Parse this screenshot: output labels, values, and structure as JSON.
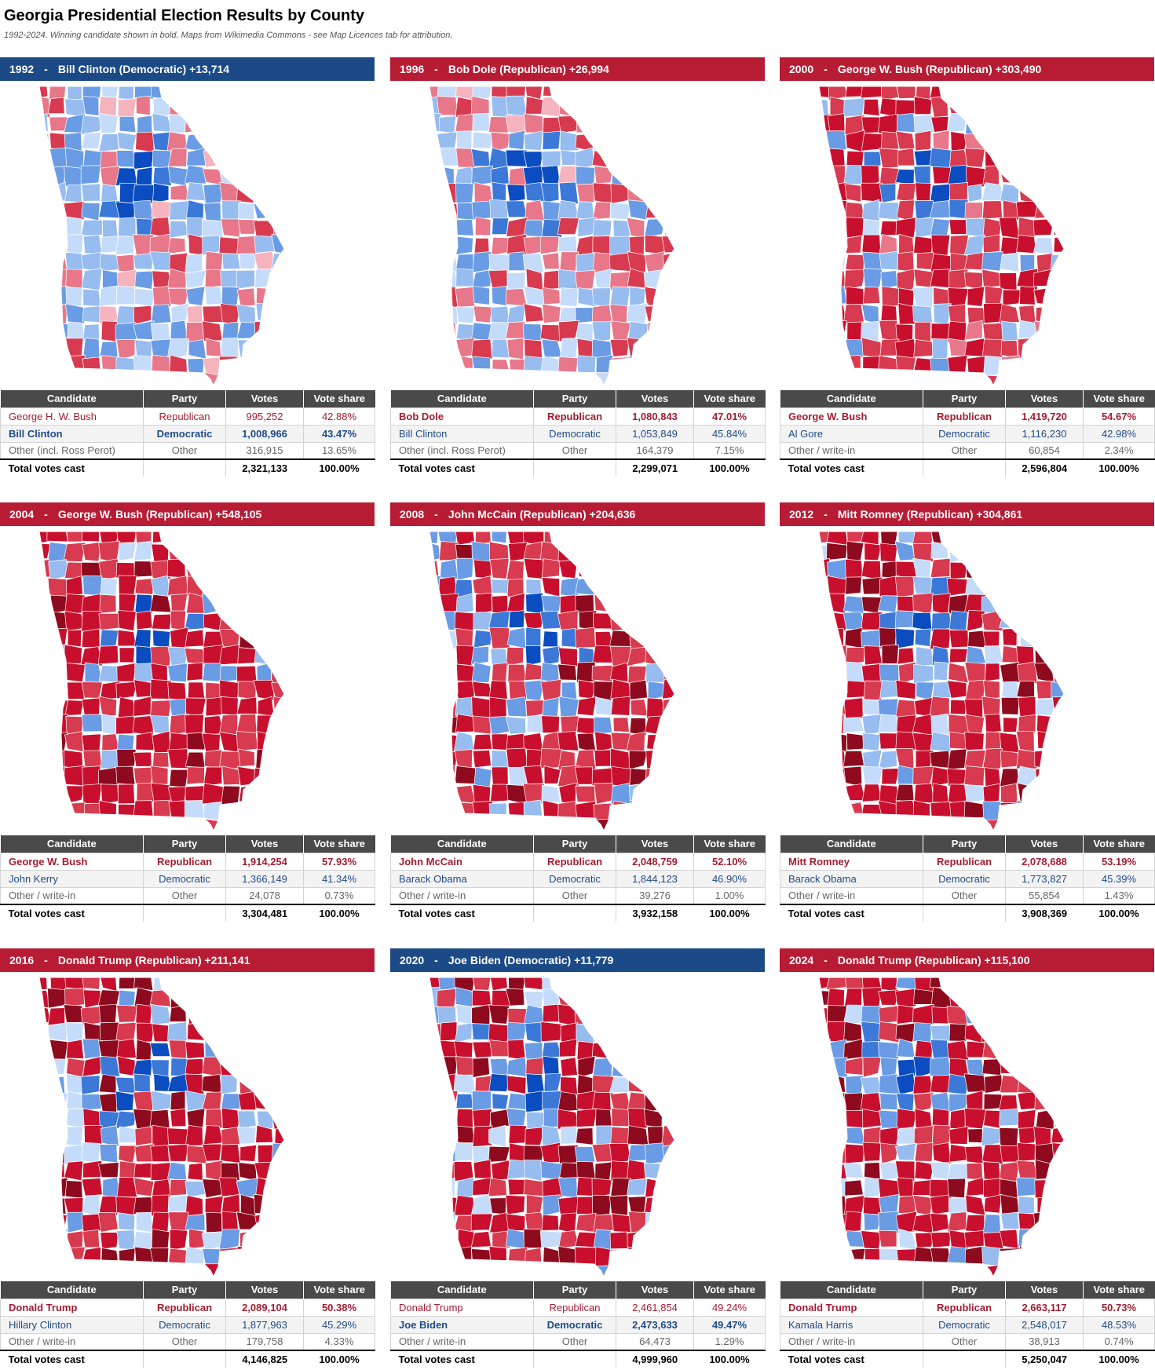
{
  "page": {
    "title": "Georgia Presidential Election Results by County",
    "subtitle": "1992-2024. Winning candidate shown in bold. Maps from Wikimedia Commons - see Map Licences tab for attribution."
  },
  "table_headers": {
    "candidate": "Candidate",
    "party": "Party",
    "votes": "Votes",
    "share": "Vote share"
  },
  "colors": {
    "rep_banner": "#b71c34",
    "dem_banner": "#1c4a86",
    "rep_shades": [
      "#f5b3bd",
      "#e8778a",
      "#d83a4f",
      "#c8102e",
      "#8e0a1e"
    ],
    "dem_shades": [
      "#c4dcfa",
      "#96bcf0",
      "#6a9be5",
      "#3b78d8",
      "#0b4cc0"
    ]
  },
  "panels": [
    {
      "year": "1992",
      "winner_party": "dem",
      "dem_level": 0.55,
      "rep_level": 0.25,
      "banner": {
        "year": "1992",
        "sep": "-",
        "text": "Bill Clinton (Democratic) +13,714"
      },
      "rows": [
        {
          "candidate": "George H. W. Bush",
          "party": "Republican",
          "votes": "995,252",
          "share": "42.88%",
          "kind": "rep",
          "win": false
        },
        {
          "candidate": "Bill Clinton",
          "party": "Democratic",
          "votes": "1,008,966",
          "share": "43.47%",
          "kind": "dem",
          "win": true
        },
        {
          "candidate": "Other (incl. Ross Perot)",
          "party": "Other",
          "votes": "316,915",
          "share": "13.65%",
          "kind": "oth",
          "win": false
        }
      ],
      "total": {
        "label": "Total votes cast",
        "votes": "2,321,133",
        "share": "100.00%"
      }
    },
    {
      "year": "1996",
      "winner_party": "rep",
      "dem_level": 0.5,
      "rep_level": 0.3,
      "banner": {
        "year": "1996",
        "sep": "-",
        "text": "Bob Dole (Republican) +26,994"
      },
      "rows": [
        {
          "candidate": "Bob Dole",
          "party": "Republican",
          "votes": "1,080,843",
          "share": "47.01%",
          "kind": "rep",
          "win": true
        },
        {
          "candidate": "Bill Clinton",
          "party": "Democratic",
          "votes": "1,053,849",
          "share": "45.84%",
          "kind": "dem",
          "win": false
        },
        {
          "candidate": "Other (incl. Ross Perot)",
          "party": "Other",
          "votes": "164,379",
          "share": "7.15%",
          "kind": "oth",
          "win": false
        }
      ],
      "total": {
        "label": "Total votes cast",
        "votes": "2,299,071",
        "share": "100.00%"
      }
    },
    {
      "year": "2000",
      "winner_party": "rep",
      "dem_level": 0.22,
      "rep_level": 0.6,
      "banner": {
        "year": "2000",
        "sep": "-",
        "text": "George W. Bush (Republican) +303,490"
      },
      "rows": [
        {
          "candidate": "George W. Bush",
          "party": "Republican",
          "votes": "1,419,720",
          "share": "54.67%",
          "kind": "rep",
          "win": true
        },
        {
          "candidate": "Al Gore",
          "party": "Democratic",
          "votes": "1,116,230",
          "share": "42.98%",
          "kind": "dem",
          "win": false
        },
        {
          "candidate": "Other / write-in",
          "party": "Other",
          "votes": "60,854",
          "share": "2.34%",
          "kind": "oth",
          "win": false
        }
      ],
      "total": {
        "label": "Total votes cast",
        "votes": "2,596,804",
        "share": "100.00%"
      }
    },
    {
      "year": "2004",
      "winner_party": "rep",
      "dem_level": 0.14,
      "rep_level": 0.75,
      "banner": {
        "year": "2004",
        "sep": "-",
        "text": "George W. Bush (Republican) +548,105"
      },
      "rows": [
        {
          "candidate": "George W. Bush",
          "party": "Republican",
          "votes": "1,914,254",
          "share": "57.93%",
          "kind": "rep",
          "win": true
        },
        {
          "candidate": "John Kerry",
          "party": "Democratic",
          "votes": "1,366,149",
          "share": "41.34%",
          "kind": "dem",
          "win": false
        },
        {
          "candidate": "Other / write-in",
          "party": "Other",
          "votes": "24,078",
          "share": "0.73%",
          "kind": "oth",
          "win": false
        }
      ],
      "total": {
        "label": "Total votes cast",
        "votes": "3,304,481",
        "share": "100.00%"
      }
    },
    {
      "year": "2008",
      "winner_party": "rep",
      "dem_level": 0.2,
      "rep_level": 0.75,
      "banner": {
        "year": "2008",
        "sep": "-",
        "text": "John McCain (Republican) +204,636"
      },
      "rows": [
        {
          "candidate": "John McCain",
          "party": "Republican",
          "votes": "2,048,759",
          "share": "52.10%",
          "kind": "rep",
          "win": true
        },
        {
          "candidate": "Barack Obama",
          "party": "Democratic",
          "votes": "1,844,123",
          "share": "46.90%",
          "kind": "dem",
          "win": false
        },
        {
          "candidate": "Other / write-in",
          "party": "Other",
          "votes": "39,276",
          "share": "1.00%",
          "kind": "oth",
          "win": false
        }
      ],
      "total": {
        "label": "Total votes cast",
        "votes": "3,932,158",
        "share": "100.00%"
      }
    },
    {
      "year": "2012",
      "winner_party": "rep",
      "dem_level": 0.2,
      "rep_level": 0.78,
      "banner": {
        "year": "2012",
        "sep": "-",
        "text": "Mitt Romney (Republican) +304,861"
      },
      "rows": [
        {
          "candidate": "Mitt Romney",
          "party": "Republican",
          "votes": "2,078,688",
          "share": "53.19%",
          "kind": "rep",
          "win": true
        },
        {
          "candidate": "Barack Obama",
          "party": "Democratic",
          "votes": "1,773,827",
          "share": "45.39%",
          "kind": "dem",
          "win": false
        },
        {
          "candidate": "Other / write-in",
          "party": "Other",
          "votes": "55,854",
          "share": "1.43%",
          "kind": "oth",
          "win": false
        }
      ],
      "total": {
        "label": "Total votes cast",
        "votes": "3,908,369",
        "share": "100.00%"
      }
    },
    {
      "year": "2016",
      "winner_party": "rep",
      "dem_level": 0.18,
      "rep_level": 0.85,
      "banner": {
        "year": "2016",
        "sep": "-",
        "text": "Donald Trump (Republican) +211,141"
      },
      "rows": [
        {
          "candidate": "Donald Trump",
          "party": "Republican",
          "votes": "2,089,104",
          "share": "50.38%",
          "kind": "rep",
          "win": true
        },
        {
          "candidate": "Hillary Clinton",
          "party": "Democratic",
          "votes": "1,877,963",
          "share": "45.29%",
          "kind": "dem",
          "win": false
        },
        {
          "candidate": "Other / write-in",
          "party": "Other",
          "votes": "179,758",
          "share": "4.33%",
          "kind": "oth",
          "win": false
        }
      ],
      "total": {
        "label": "Total votes cast",
        "votes": "4,146,825",
        "share": "100.00%"
      }
    },
    {
      "year": "2020",
      "winner_party": "dem",
      "dem_level": 0.2,
      "rep_level": 0.85,
      "banner": {
        "year": "2020",
        "sep": "-",
        "text": "Joe Biden (Democratic) +11,779"
      },
      "rows": [
        {
          "candidate": "Donald Trump",
          "party": "Republican",
          "votes": "2,461,854",
          "share": "49.24%",
          "kind": "rep",
          "win": false
        },
        {
          "candidate": "Joe Biden",
          "party": "Democratic",
          "votes": "2,473,633",
          "share": "49.47%",
          "kind": "dem",
          "win": true
        },
        {
          "candidate": "Other / write-in",
          "party": "Other",
          "votes": "64,473",
          "share": "1.29%",
          "kind": "oth",
          "win": false
        }
      ],
      "total": {
        "label": "Total votes cast",
        "votes": "4,999,960",
        "share": "100.00%"
      }
    },
    {
      "year": "2024",
      "winner_party": "rep",
      "dem_level": 0.18,
      "rep_level": 0.85,
      "banner": {
        "year": "2024",
        "sep": "-",
        "text": "Donald Trump (Republican) +115,100"
      },
      "rows": [
        {
          "candidate": "Donald Trump",
          "party": "Republican",
          "votes": "2,663,117",
          "share": "50.73%",
          "kind": "rep",
          "win": true
        },
        {
          "candidate": "Kamala Harris",
          "party": "Democratic",
          "votes": "2,548,017",
          "share": "48.53%",
          "kind": "dem",
          "win": false
        },
        {
          "candidate": "Other / write-in",
          "party": "Other",
          "votes": "38,913",
          "share": "0.74%",
          "kind": "oth",
          "win": false
        }
      ],
      "total": {
        "label": "Total votes cast",
        "votes": "5,250,047",
        "share": "100.00%"
      }
    }
  ]
}
